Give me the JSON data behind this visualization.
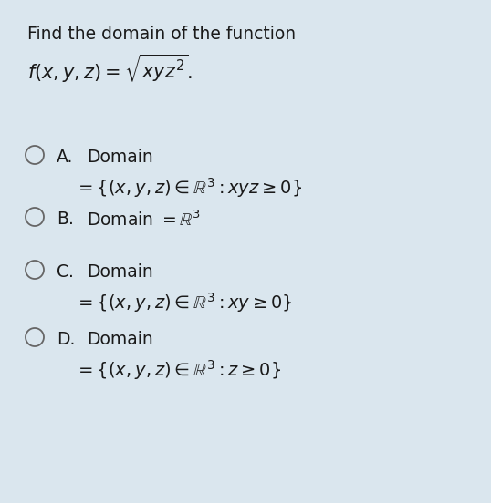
{
  "background_color": "#dae6ee",
  "title_line1": "Find the domain of the function",
  "title_line2": "$f(x, y, z) = \\sqrt{xyz^2}.$",
  "options": [
    {
      "letter": "A.",
      "line1": "Domain",
      "line2": "$= \\{(x, y, z) \\in \\mathbb{R}^3 : xyz \\geq 0\\}$"
    },
    {
      "letter": "B.",
      "line1": "Domain $= \\mathbb{R}^3$",
      "line2": null
    },
    {
      "letter": "C.",
      "line1": "Domain",
      "line2": "$= \\{(x, y, z) \\in \\mathbb{R}^3 : xy \\geq 0\\}$"
    },
    {
      "letter": "D.",
      "line1": "Domain",
      "line2": "$= \\{(x, y, z) \\in \\mathbb{R}^3 : z \\geq 0\\}$"
    }
  ],
  "text_color": "#1a1a1a",
  "circle_color": "#666666",
  "font_size_title1": 13.5,
  "font_size_title2": 15,
  "font_size_body": 13.5,
  "font_size_math": 14
}
